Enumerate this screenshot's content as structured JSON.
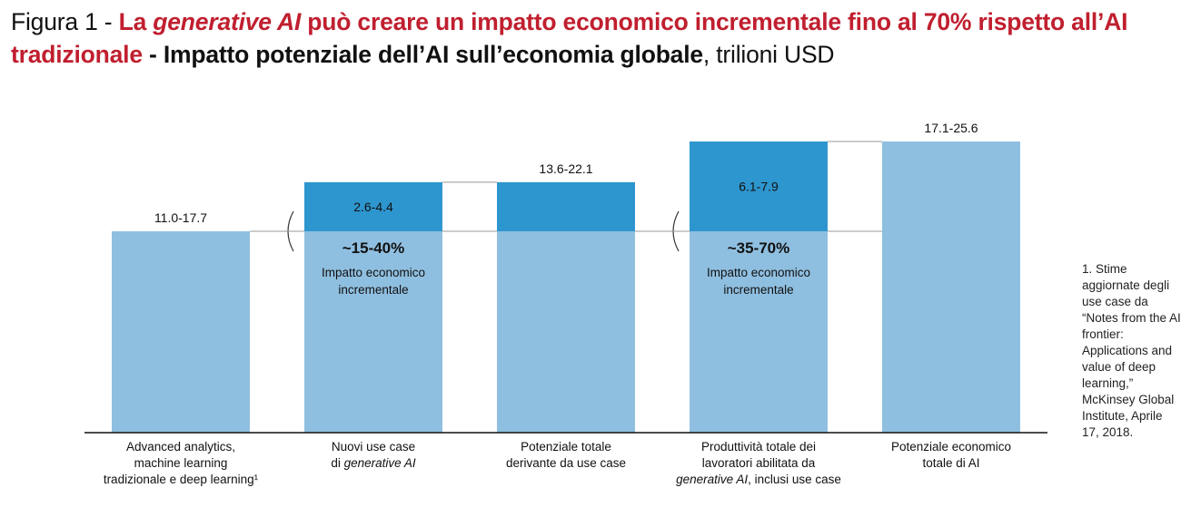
{
  "title": {
    "prefix": "Figura 1 - ",
    "red1": "La ",
    "red_italic": "generative AI",
    "red2": " può creare un impatto economico incrementale fino al 70% rispetto all’AI tradizionale ",
    "dash": " - ",
    "bold": "Impatto potenziale dell’AI sull’economia globale",
    "unit": ", trilioni USD"
  },
  "footnote": "1.    Stime aggiornate degli use case da “Notes from the AI frontier: Applications and value of deep learning,” McKinsey Global Institute, Aprile 17, 2018.",
  "colors": {
    "light": "#8fbfe0",
    "dark": "#2e96cf",
    "red": "#c01f2f"
  },
  "chart_data": {
    "type": "bar",
    "subtype": "waterfall",
    "unit": "trilioni USD",
    "categories": [
      {
        "lines": [
          "Advanced analytics,",
          "machine learning",
          "tradizionale e deep learning¹"
        ]
      },
      {
        "lines": [
          "Nuovi use case",
          "di generative AI"
        ]
      },
      {
        "lines": [
          "Potenziale totale",
          "derivante da use case"
        ]
      },
      {
        "lines": [
          "Produttività totale dei",
          "lavoratori abilitata da",
          "generative AI, inclusi use case"
        ]
      },
      {
        "lines": [
          "Potenziale economico",
          "totale di AI"
        ]
      }
    ],
    "bars": [
      {
        "base": 0,
        "light": 14.35,
        "dark": 0,
        "label": "11.0-17.7"
      },
      {
        "base": 0,
        "light": 14.35,
        "dark": 3.5,
        "label": "2.6-4.4",
        "pct": "~15-40%",
        "pct_note": [
          "Impatto economico",
          "incrementale"
        ]
      },
      {
        "base": 0,
        "light": 14.35,
        "dark": 3.5,
        "label": "13.6-22.1"
      },
      {
        "base": 0,
        "light": 14.35,
        "dark": 6.4,
        "label": "6.1-7.9",
        "pct": "~35-70%",
        "pct_note": [
          "Impatto economico",
          "incrementale"
        ]
      },
      {
        "base": 0,
        "light": 20.75,
        "dark": 0,
        "label": "17.1-25.6"
      }
    ],
    "ylim": [
      0,
      22
    ]
  }
}
